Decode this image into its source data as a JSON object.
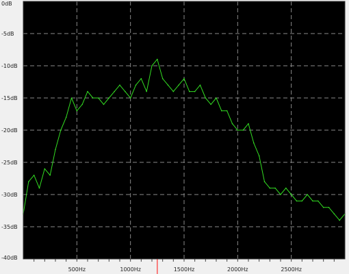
{
  "chart_data": {
    "type": "line",
    "title": "",
    "xlabel": "",
    "ylabel": "",
    "xlim": [
      0,
      3000
    ],
    "ylim": [
      -40,
      0
    ],
    "y_ticks": [
      0,
      -5,
      -10,
      -15,
      -20,
      -25,
      -30,
      -35,
      -40
    ],
    "y_tick_labels": [
      "0dB",
      "-5dB",
      "-10dB",
      "-15dB",
      "-20dB",
      "-25dB",
      "-30dB",
      "-35dB",
      "-40dB"
    ],
    "x_ticks": [
      500,
      1000,
      1500,
      2000,
      2500
    ],
    "x_tick_labels": [
      "500Hz",
      "1000Hz",
      "1500Hz",
      "2000Hz",
      "2500Hz"
    ],
    "x_minor_step": 100,
    "grid": true,
    "background": "#000000",
    "grid_color": "#8a8a8a",
    "line_color": "#33dd22",
    "cursor_color": "#ff3333",
    "cursor_x": 1250,
    "series": [
      {
        "x": [
          0,
          50,
          100,
          150,
          200,
          250,
          300,
          350,
          400,
          450,
          500,
          550,
          600,
          650,
          700,
          750,
          800,
          850,
          900,
          950,
          1000,
          1050,
          1100,
          1150,
          1200,
          1250,
          1300,
          1350,
          1400,
          1450,
          1500,
          1550,
          1600,
          1650,
          1700,
          1750,
          1800,
          1850,
          1900,
          1950,
          2000,
          2050,
          2100,
          2150,
          2200,
          2250,
          2300,
          2350,
          2400,
          2450,
          2500,
          2550,
          2600,
          2650,
          2700,
          2750,
          2800,
          2850,
          2900,
          2950,
          3000
        ],
        "values": [
          -33,
          -28,
          -27,
          -29,
          -26,
          -27,
          -23,
          -20,
          -18,
          -15,
          -17,
          -16,
          -14,
          -15,
          -15,
          -16,
          -15,
          -14,
          -13,
          -14,
          -15,
          -13,
          -12,
          -14,
          -10,
          -9,
          -12,
          -13,
          -14,
          -13,
          -12,
          -14,
          -14,
          -13,
          -15,
          -16,
          -15,
          -17,
          -17,
          -19,
          -20,
          -20,
          -19,
          -22,
          -24,
          -28,
          -29,
          -29,
          -30,
          -29,
          -30,
          -31,
          -31,
          -30,
          -31,
          -31,
          -32,
          -32,
          -33,
          -34,
          -33
        ]
      }
    ]
  }
}
